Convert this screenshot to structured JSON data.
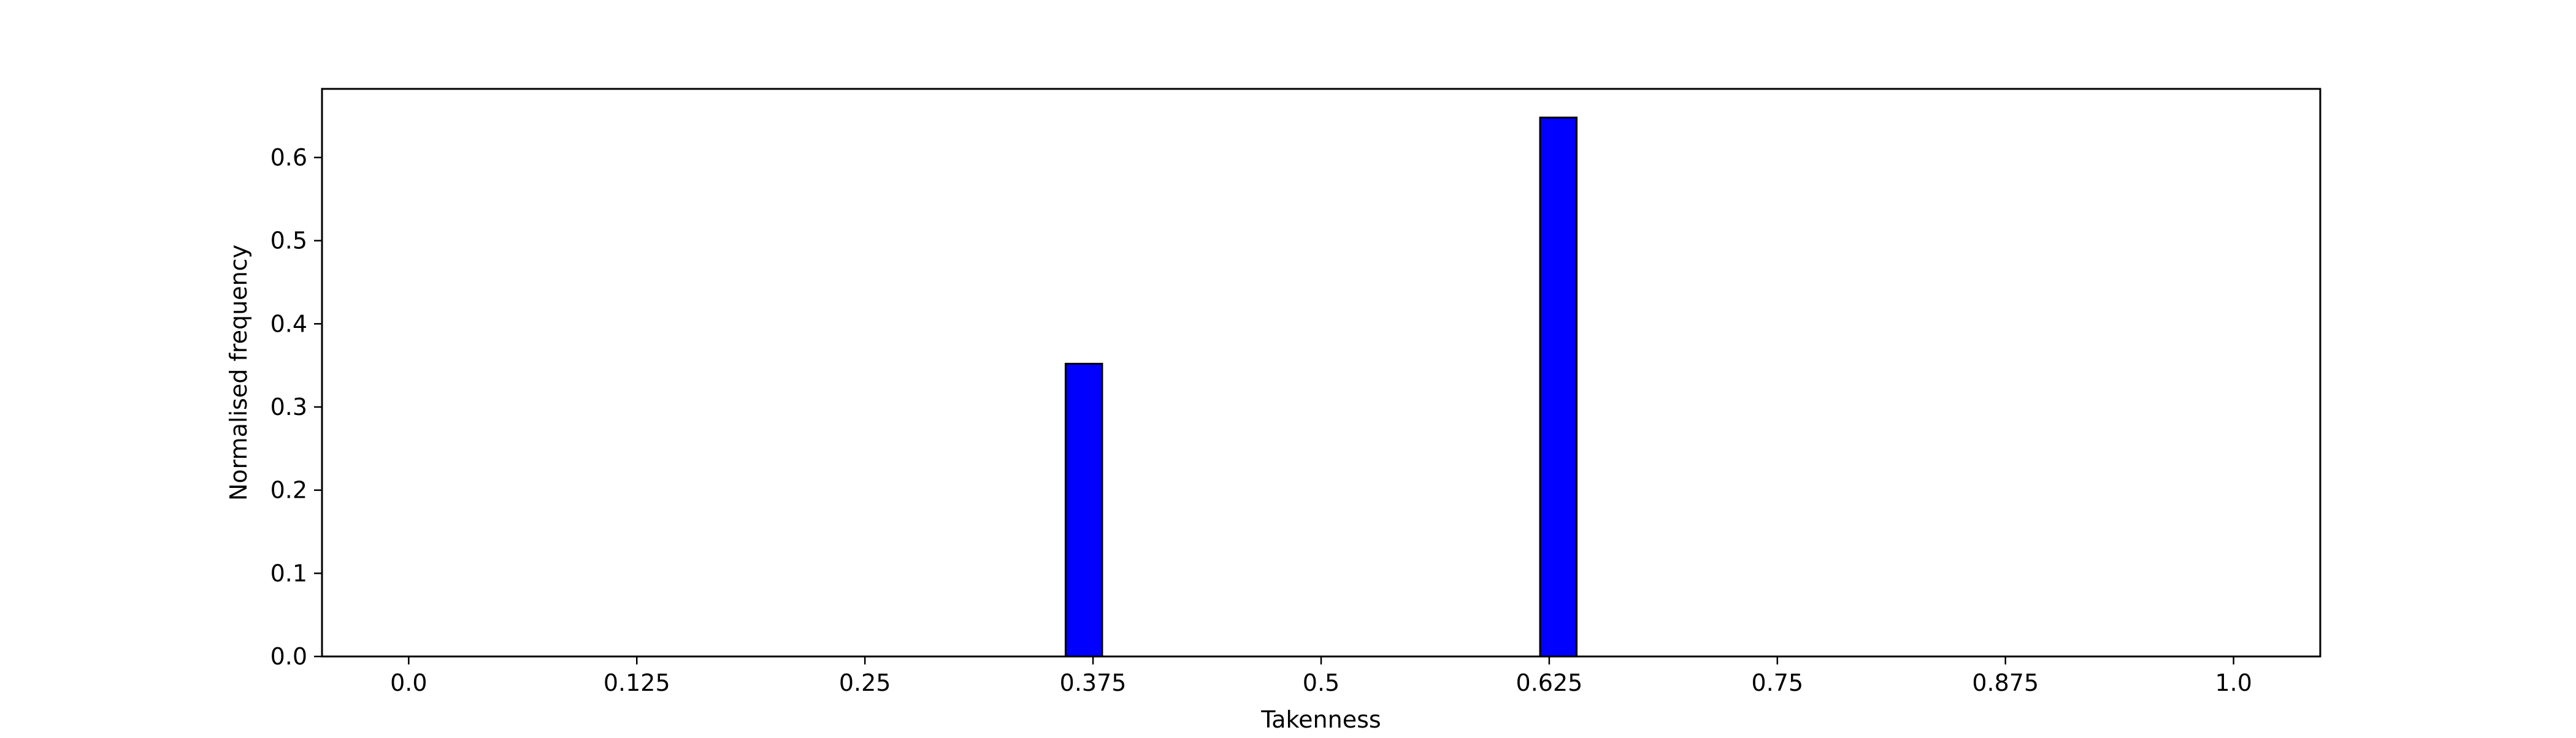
{
  "chart_data": {
    "type": "bar",
    "xlabel": "Takenness",
    "ylabel": "Normalised frequency",
    "xlim": [
      -0.0475,
      1.0475
    ],
    "ylim": [
      0.0,
      0.6825
    ],
    "x_ticks": [
      0.0,
      0.125,
      0.25,
      0.375,
      0.5,
      0.625,
      0.75,
      0.875,
      1.0
    ],
    "x_tick_labels": [
      "0.0",
      "0.125",
      "0.25",
      "0.375",
      "0.5",
      "0.625",
      "0.75",
      "0.875",
      "1.0"
    ],
    "y_ticks": [
      0.0,
      0.1,
      0.2,
      0.3,
      0.4,
      0.5,
      0.6
    ],
    "y_tick_labels": [
      "0.0",
      "0.1",
      "0.2",
      "0.3",
      "0.4",
      "0.5",
      "0.6"
    ],
    "bin_width": 0.02,
    "bins": [
      {
        "x0": 0.36,
        "x1": 0.38,
        "value": 0.352
      },
      {
        "x0": 0.62,
        "x1": 0.64,
        "value": 0.648
      }
    ],
    "bar_color": "#0000ff",
    "edge_color": "#000000",
    "grid": false,
    "legend": false
  }
}
